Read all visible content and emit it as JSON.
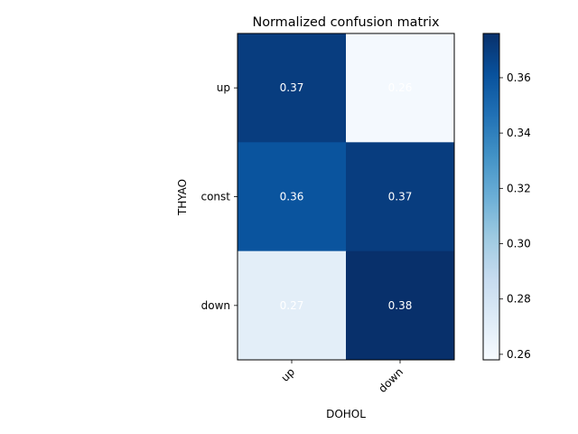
{
  "chart_data": {
    "type": "heatmap",
    "title": "Normalized confusion matrix",
    "xlabel": "DOHOL",
    "ylabel": "THYAO",
    "x_categories": [
      "up",
      "down"
    ],
    "y_categories": [
      "up",
      "const",
      "down"
    ],
    "values": [
      [
        0.37,
        0.26
      ],
      [
        0.36,
        0.37
      ],
      [
        0.27,
        0.38
      ]
    ],
    "value_labels": [
      [
        "0.37",
        "0.26"
      ],
      [
        "0.36",
        "0.37"
      ],
      [
        "0.27",
        "0.38"
      ]
    ],
    "colorbar": {
      "min": 0.258,
      "max": 0.376,
      "ticks": [
        0.26,
        0.28,
        0.3,
        0.32,
        0.34,
        0.36
      ],
      "tick_labels": [
        "0.26",
        "0.28",
        "0.30",
        "0.32",
        "0.34",
        "0.36"
      ]
    },
    "colormap": "Blues",
    "colormap_stops": [
      "#f7fbff",
      "#deebf7",
      "#c6dbef",
      "#9ecae1",
      "#6baed6",
      "#4292c6",
      "#2171b5",
      "#08519c",
      "#08306b"
    ],
    "grid": false
  }
}
